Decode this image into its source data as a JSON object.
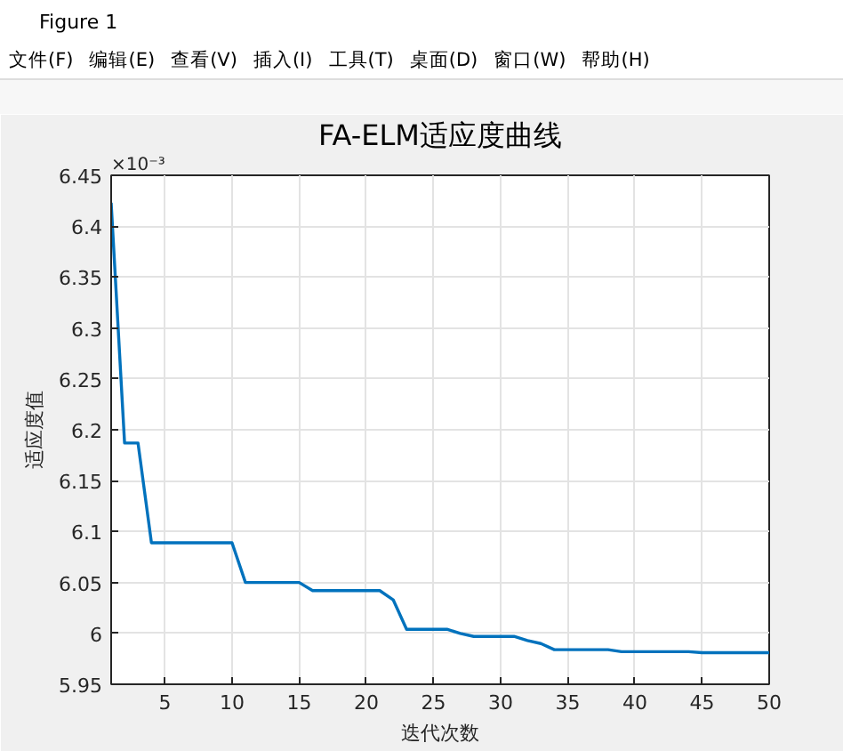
{
  "chart_data": {
    "type": "line",
    "title": "FA-ELM适应度曲线",
    "xlabel": "迭代次数",
    "ylabel": "适应度值",
    "x": [
      1,
      2,
      3,
      4,
      5,
      6,
      7,
      8,
      9,
      10,
      11,
      12,
      13,
      14,
      15,
      16,
      17,
      18,
      19,
      20,
      21,
      22,
      23,
      24,
      25,
      26,
      27,
      28,
      29,
      30,
      31,
      32,
      33,
      34,
      35,
      36,
      37,
      38,
      39,
      40,
      41,
      42,
      43,
      44,
      45,
      46,
      47,
      48,
      49,
      50
    ],
    "series": [
      {
        "color": "#0072bd",
        "values": [
          6.423,
          6.187,
          6.187,
          6.089,
          6.089,
          6.089,
          6.089,
          6.089,
          6.089,
          6.089,
          6.05,
          6.05,
          6.05,
          6.05,
          6.05,
          6.042,
          6.042,
          6.042,
          6.042,
          6.042,
          6.042,
          6.033,
          6.004,
          6.004,
          6.004,
          6.004,
          6.0,
          5.997,
          5.997,
          5.997,
          5.997,
          5.993,
          5.99,
          5.984,
          5.984,
          5.984,
          5.984,
          5.984,
          5.982,
          5.982,
          5.982,
          5.982,
          5.982,
          5.982,
          5.981,
          5.981,
          5.981,
          5.981,
          5.981,
          5.981
        ]
      }
    ],
    "xlim": [
      1,
      50
    ],
    "ylim": [
      5.95,
      6.45
    ],
    "xticks": [
      5,
      10,
      15,
      20,
      25,
      30,
      35,
      40,
      45,
      50
    ],
    "yticks": [
      5.95,
      6,
      6.05,
      6.1,
      6.15,
      6.2,
      6.25,
      6.3,
      6.35,
      6.4,
      6.45
    ],
    "grid": true,
    "line_style": "solid",
    "annotations": [
      "×10⁻³",
      "Figure 1",
      "文件(F)",
      "编辑(E)",
      "查看(V)",
      "插入(I)",
      "工具(T)",
      "桌面(D)",
      "窗口(W)",
      "帮助(H)"
    ]
  }
}
